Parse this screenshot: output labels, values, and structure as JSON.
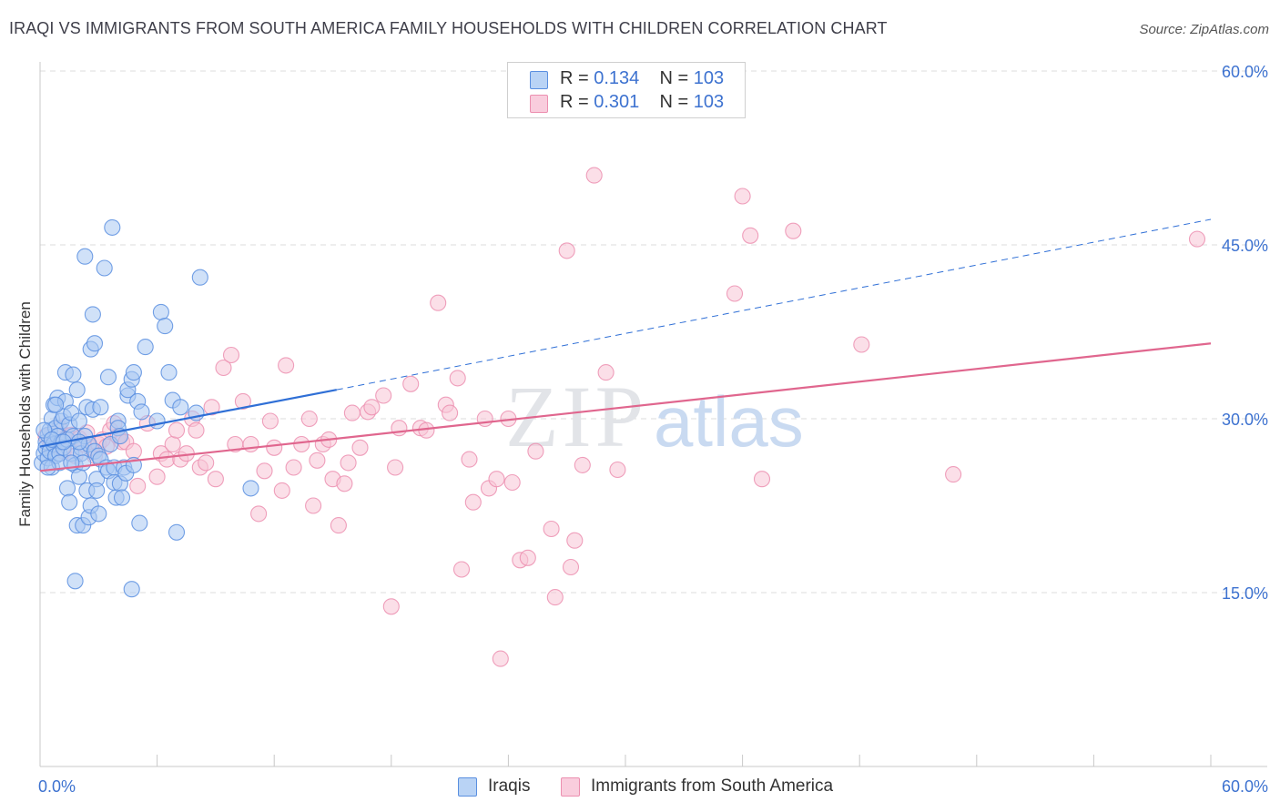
{
  "header": {
    "title": "IRAQI VS IMMIGRANTS FROM SOUTH AMERICA FAMILY HOUSEHOLDS WITH CHILDREN CORRELATION CHART",
    "source": "Source: ZipAtlas.com"
  },
  "legend": {
    "rows": [
      {
        "r_label": "R =",
        "r_value": "0.134",
        "n_label": "N =",
        "n_value": "103"
      },
      {
        "r_label": "R =",
        "r_value": "0.301",
        "n_label": "N =",
        "n_value": "103"
      }
    ]
  },
  "bottom_legend": {
    "series1": "Iraqis",
    "series2": "Immigrants from South America"
  },
  "watermark": {
    "zip": "ZIP",
    "atlas": "atlas"
  },
  "colors": {
    "blue_fill": "#a9c8f2",
    "blue_stroke": "#5a8fe0",
    "blue_line": "#2f6fd6",
    "pink_fill": "#f8c4d6",
    "pink_stroke": "#ec8fb0",
    "pink_line": "#e0668e",
    "tick_text": "#3d72d0",
    "grid": "#dcdcdc"
  },
  "chart_data": {
    "type": "scatter",
    "title": "IRAQI VS IMMIGRANTS FROM SOUTH AMERICA FAMILY HOUSEHOLDS WITH CHILDREN CORRELATION CHART",
    "xlabel": "",
    "ylabel": "Family Households with Children",
    "xlim": [
      0,
      0.6
    ],
    "ylim": [
      0,
      0.6
    ],
    "x_tick_labels": [
      "0.0%",
      "60.0%"
    ],
    "y_ticks": [
      0.15,
      0.3,
      0.45,
      0.6
    ],
    "y_tick_labels": [
      "15.0%",
      "30.0%",
      "45.0%",
      "60.0%"
    ],
    "grid": true,
    "legend_position": "top-center",
    "series": [
      {
        "name": "Iraqis",
        "r": 0.134,
        "n": 103,
        "trend_solid": [
          [
            0.0,
            0.276
          ],
          [
            0.152,
            0.325
          ]
        ],
        "trend_dashed": [
          [
            0.152,
            0.325
          ],
          [
            0.6,
            0.472
          ]
        ],
        "points": [
          [
            0.001,
            0.262
          ],
          [
            0.002,
            0.27
          ],
          [
            0.003,
            0.28
          ],
          [
            0.003,
            0.275
          ],
          [
            0.004,
            0.266
          ],
          [
            0.004,
            0.286
          ],
          [
            0.005,
            0.29
          ],
          [
            0.005,
            0.272
          ],
          [
            0.006,
            0.3
          ],
          [
            0.006,
            0.258
          ],
          [
            0.007,
            0.278
          ],
          [
            0.007,
            0.312
          ],
          [
            0.008,
            0.268
          ],
          [
            0.008,
            0.292
          ],
          [
            0.009,
            0.285
          ],
          [
            0.009,
            0.318
          ],
          [
            0.01,
            0.27
          ],
          [
            0.01,
            0.262
          ],
          [
            0.011,
            0.298
          ],
          [
            0.011,
            0.28
          ],
          [
            0.012,
            0.302
          ],
          [
            0.012,
            0.275
          ],
          [
            0.013,
            0.315
          ],
          [
            0.013,
            0.34
          ],
          [
            0.014,
            0.282
          ],
          [
            0.014,
            0.24
          ],
          [
            0.015,
            0.295
          ],
          [
            0.015,
            0.228
          ],
          [
            0.016,
            0.27
          ],
          [
            0.016,
            0.305
          ],
          [
            0.017,
            0.285
          ],
          [
            0.017,
            0.338
          ],
          [
            0.018,
            0.26
          ],
          [
            0.018,
            0.16
          ],
          [
            0.019,
            0.325
          ],
          [
            0.019,
            0.208
          ],
          [
            0.02,
            0.298
          ],
          [
            0.02,
            0.25
          ],
          [
            0.021,
            0.275
          ],
          [
            0.021,
            0.27
          ],
          [
            0.022,
            0.262
          ],
          [
            0.022,
            0.208
          ],
          [
            0.023,
            0.285
          ],
          [
            0.023,
            0.44
          ],
          [
            0.024,
            0.31
          ],
          [
            0.024,
            0.238
          ],
          [
            0.025,
            0.215
          ],
          [
            0.025,
            0.278
          ],
          [
            0.026,
            0.225
          ],
          [
            0.026,
            0.36
          ],
          [
            0.027,
            0.39
          ],
          [
            0.027,
            0.308
          ],
          [
            0.028,
            0.365
          ],
          [
            0.028,
            0.272
          ],
          [
            0.029,
            0.248
          ],
          [
            0.029,
            0.238
          ],
          [
            0.03,
            0.218
          ],
          [
            0.03,
            0.268
          ],
          [
            0.031,
            0.31
          ],
          [
            0.031,
            0.265
          ],
          [
            0.033,
            0.43
          ],
          [
            0.034,
            0.258
          ],
          [
            0.035,
            0.336
          ],
          [
            0.035,
            0.255
          ],
          [
            0.036,
            0.278
          ],
          [
            0.037,
            0.465
          ],
          [
            0.038,
            0.258
          ],
          [
            0.038,
            0.245
          ],
          [
            0.039,
            0.232
          ],
          [
            0.04,
            0.298
          ],
          [
            0.04,
            0.292
          ],
          [
            0.041,
            0.285
          ],
          [
            0.041,
            0.244
          ],
          [
            0.042,
            0.232
          ],
          [
            0.043,
            0.258
          ],
          [
            0.044,
            0.253
          ],
          [
            0.045,
            0.32
          ],
          [
            0.045,
            0.325
          ],
          [
            0.047,
            0.334
          ],
          [
            0.047,
            0.153
          ],
          [
            0.048,
            0.26
          ],
          [
            0.048,
            0.34
          ],
          [
            0.05,
            0.315
          ],
          [
            0.051,
            0.21
          ],
          [
            0.052,
            0.306
          ],
          [
            0.054,
            0.362
          ],
          [
            0.06,
            0.298
          ],
          [
            0.062,
            0.392
          ],
          [
            0.064,
            0.38
          ],
          [
            0.066,
            0.34
          ],
          [
            0.068,
            0.316
          ],
          [
            0.07,
            0.202
          ],
          [
            0.072,
            0.31
          ],
          [
            0.08,
            0.305
          ],
          [
            0.082,
            0.422
          ],
          [
            0.108,
            0.24
          ],
          [
            0.002,
            0.29
          ],
          [
            0.004,
            0.258
          ],
          [
            0.006,
            0.282
          ],
          [
            0.008,
            0.312
          ],
          [
            0.012,
            0.28
          ],
          [
            0.016,
            0.262
          ],
          [
            0.02,
            0.28
          ]
        ]
      },
      {
        "name": "Immigrants from South America",
        "r": 0.301,
        "n": 103,
        "trend_solid": [
          [
            0.0,
            0.255
          ],
          [
            0.6,
            0.365
          ]
        ],
        "points": [
          [
            0.003,
            0.285
          ],
          [
            0.005,
            0.276
          ],
          [
            0.008,
            0.278
          ],
          [
            0.01,
            0.292
          ],
          [
            0.012,
            0.272
          ],
          [
            0.014,
            0.285
          ],
          [
            0.016,
            0.286
          ],
          [
            0.018,
            0.268
          ],
          [
            0.02,
            0.283
          ],
          [
            0.022,
            0.278
          ],
          [
            0.024,
            0.288
          ],
          [
            0.026,
            0.275
          ],
          [
            0.028,
            0.268
          ],
          [
            0.03,
            0.278
          ],
          [
            0.032,
            0.282
          ],
          [
            0.034,
            0.276
          ],
          [
            0.036,
            0.29
          ],
          [
            0.038,
            0.296
          ],
          [
            0.04,
            0.285
          ],
          [
            0.042,
            0.28
          ],
          [
            0.044,
            0.28
          ],
          [
            0.048,
            0.272
          ],
          [
            0.05,
            0.242
          ],
          [
            0.055,
            0.296
          ],
          [
            0.06,
            0.25
          ],
          [
            0.062,
            0.27
          ],
          [
            0.065,
            0.265
          ],
          [
            0.068,
            0.278
          ],
          [
            0.07,
            0.29
          ],
          [
            0.072,
            0.265
          ],
          [
            0.075,
            0.27
          ],
          [
            0.078,
            0.3
          ],
          [
            0.08,
            0.29
          ],
          [
            0.082,
            0.258
          ],
          [
            0.085,
            0.262
          ],
          [
            0.088,
            0.31
          ],
          [
            0.09,
            0.248
          ],
          [
            0.094,
            0.344
          ],
          [
            0.098,
            0.355
          ],
          [
            0.1,
            0.278
          ],
          [
            0.104,
            0.315
          ],
          [
            0.108,
            0.278
          ],
          [
            0.112,
            0.218
          ],
          [
            0.115,
            0.255
          ],
          [
            0.118,
            0.298
          ],
          [
            0.12,
            0.275
          ],
          [
            0.124,
            0.238
          ],
          [
            0.126,
            0.346
          ],
          [
            0.13,
            0.258
          ],
          [
            0.134,
            0.278
          ],
          [
            0.138,
            0.3
          ],
          [
            0.14,
            0.225
          ],
          [
            0.142,
            0.264
          ],
          [
            0.145,
            0.278
          ],
          [
            0.148,
            0.282
          ],
          [
            0.15,
            0.248
          ],
          [
            0.153,
            0.208
          ],
          [
            0.156,
            0.244
          ],
          [
            0.158,
            0.262
          ],
          [
            0.16,
            0.305
          ],
          [
            0.164,
            0.275
          ],
          [
            0.168,
            0.306
          ],
          [
            0.17,
            0.31
          ],
          [
            0.176,
            0.32
          ],
          [
            0.18,
            0.138
          ],
          [
            0.182,
            0.258
          ],
          [
            0.184,
            0.292
          ],
          [
            0.19,
            0.33
          ],
          [
            0.195,
            0.292
          ],
          [
            0.198,
            0.29
          ],
          [
            0.204,
            0.4
          ],
          [
            0.208,
            0.312
          ],
          [
            0.21,
            0.305
          ],
          [
            0.214,
            0.335
          ],
          [
            0.216,
            0.17
          ],
          [
            0.22,
            0.265
          ],
          [
            0.222,
            0.228
          ],
          [
            0.228,
            0.3
          ],
          [
            0.23,
            0.24
          ],
          [
            0.234,
            0.248
          ],
          [
            0.236,
            0.093
          ],
          [
            0.24,
            0.3
          ],
          [
            0.242,
            0.245
          ],
          [
            0.246,
            0.178
          ],
          [
            0.25,
            0.18
          ],
          [
            0.254,
            0.272
          ],
          [
            0.262,
            0.205
          ],
          [
            0.264,
            0.146
          ],
          [
            0.27,
            0.445
          ],
          [
            0.272,
            0.172
          ],
          [
            0.274,
            0.195
          ],
          [
            0.278,
            0.26
          ],
          [
            0.284,
            0.51
          ],
          [
            0.29,
            0.34
          ],
          [
            0.296,
            0.256
          ],
          [
            0.356,
            0.408
          ],
          [
            0.36,
            0.492
          ],
          [
            0.364,
            0.458
          ],
          [
            0.37,
            0.248
          ],
          [
            0.386,
            0.462
          ],
          [
            0.421,
            0.364
          ],
          [
            0.468,
            0.252
          ],
          [
            0.593,
            0.455
          ]
        ]
      }
    ]
  }
}
